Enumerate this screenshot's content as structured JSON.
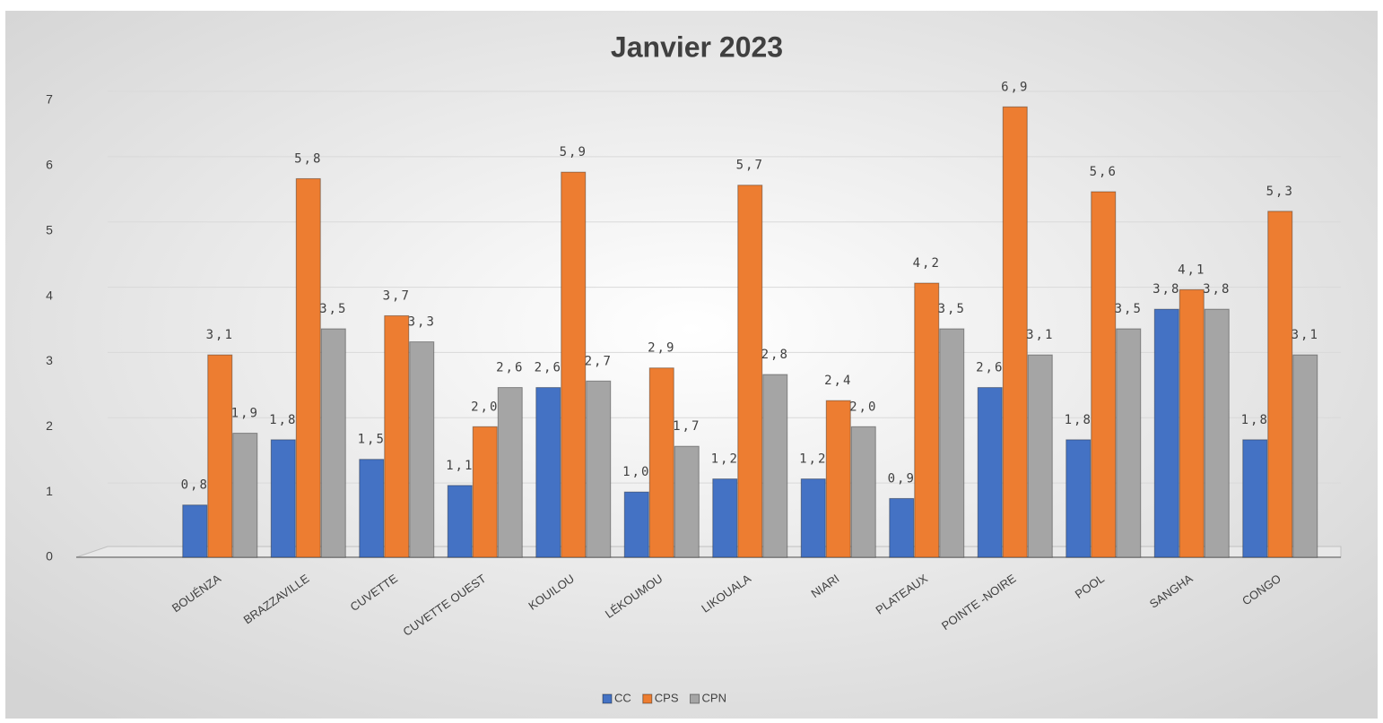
{
  "chart_data": {
    "type": "bar",
    "title": "Janvier 2023",
    "categories": [
      "BOUÉNZA",
      "BRAZZAVILLE",
      "CUVETTE",
      "CUVETTE OUEST",
      "KOUILOU",
      "LÉKOUMOU",
      "LIKOUALA",
      "NIARI",
      "PLATEAUX",
      "POINTE -NOIRE",
      "POOL",
      "SANGHA",
      "CONGO"
    ],
    "series": [
      {
        "name": "CC",
        "color": "#4472c4",
        "values": [
          0.8,
          1.8,
          1.5,
          1.1,
          2.6,
          1.0,
          1.2,
          1.2,
          0.9,
          2.6,
          1.8,
          3.8,
          1.8
        ],
        "value_labels": [
          "0,8",
          "1,8",
          "1,5",
          "1,1",
          "2,6",
          "1,0",
          "1,2",
          "1,2",
          "0,9",
          "2,6",
          "1,8",
          "3,8",
          "1,8"
        ]
      },
      {
        "name": "CPS",
        "color": "#ed7d31",
        "values": [
          3.1,
          5.8,
          3.7,
          2.0,
          5.9,
          2.9,
          5.7,
          2.4,
          4.2,
          6.9,
          5.6,
          4.1,
          5.3
        ],
        "value_labels": [
          "3,1",
          "5,8",
          "3,7",
          "2,0",
          "5,9",
          "2,9",
          "5,7",
          "2,4",
          "4,2",
          "6,9",
          "5,6",
          "4,1",
          "5,3"
        ]
      },
      {
        "name": "CPN",
        "color": "#a5a5a5",
        "values": [
          1.9,
          3.5,
          3.3,
          2.6,
          2.7,
          1.7,
          2.8,
          2.0,
          3.5,
          3.1,
          3.5,
          3.8,
          3.1
        ],
        "value_labels": [
          "1,9",
          "3,5",
          "3,3",
          "2,6",
          "2,7",
          "1,7",
          "2,8",
          "2,0",
          "3,5",
          "3,1",
          "3,5",
          "3,8",
          "3,1"
        ]
      }
    ],
    "ylim": [
      0,
      7
    ],
    "yticks": [
      0,
      1,
      2,
      3,
      4,
      5,
      6,
      7
    ],
    "grid": true,
    "legend": "bottom"
  }
}
